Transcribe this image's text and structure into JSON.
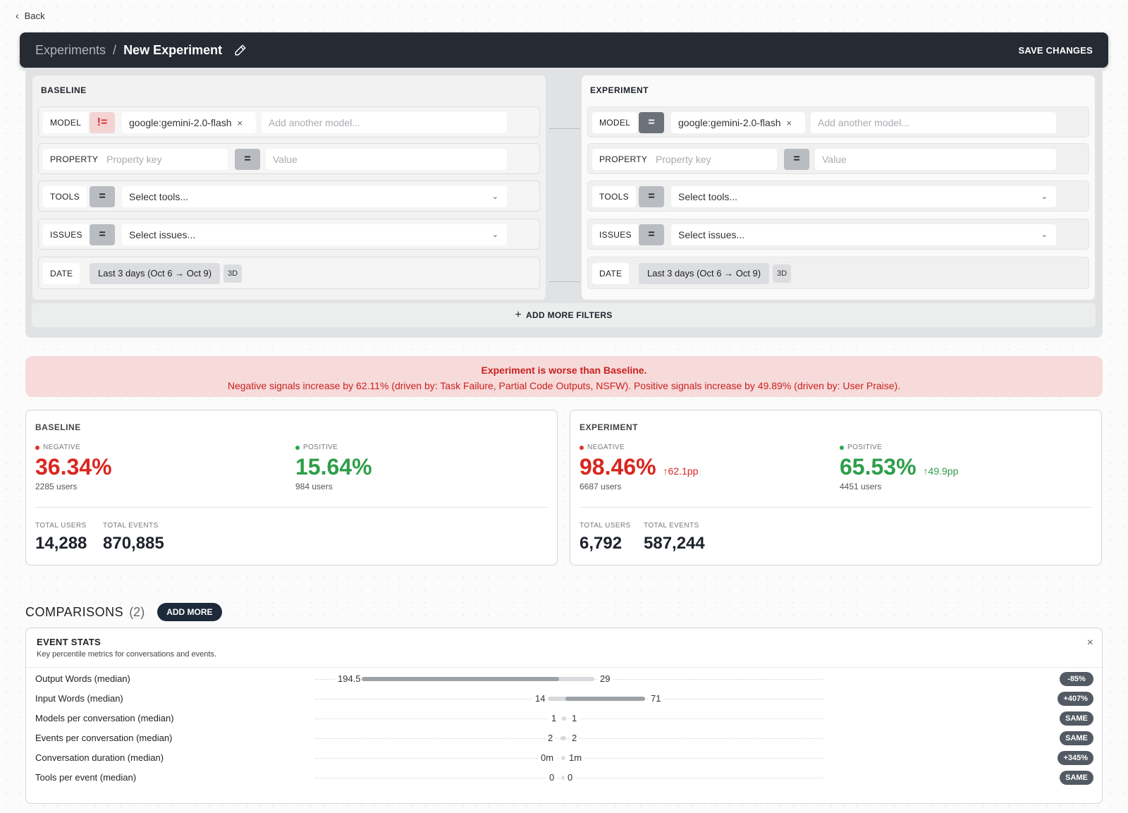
{
  "nav": {
    "back_label": "Back"
  },
  "header": {
    "breadcrumb_root": "Experiments",
    "breadcrumb_sep": "/",
    "title": "New Experiment",
    "save_label": "SAVE CHANGES"
  },
  "filters": {
    "baseline": {
      "title": "BASELINE",
      "model": {
        "tag": "MODEL",
        "op": "!=",
        "chip": "google:gemini-2.0-flash",
        "chip_remove": "×",
        "placeholder": "Add another model..."
      },
      "property": {
        "tag": "PROPERTY",
        "key_placeholder": "Property key",
        "op": "=",
        "value_placeholder": "Value"
      },
      "tools": {
        "tag": "TOOLS",
        "op": "=",
        "placeholder": "Select tools..."
      },
      "issues": {
        "tag": "ISSUES",
        "op": "=",
        "placeholder": "Select issues..."
      },
      "date": {
        "tag": "DATE",
        "range": "Last 3 days (Oct 6 → Oct 9)",
        "short": "3D"
      }
    },
    "experiment": {
      "title": "EXPERIMENT",
      "model": {
        "tag": "MODEL",
        "op": "=",
        "chip": "google:gemini-2.0-flash",
        "chip_remove": "×",
        "placeholder": "Add another model..."
      },
      "property": {
        "tag": "PROPERTY",
        "key_placeholder": "Property key",
        "op": "=",
        "value_placeholder": "Value"
      },
      "tools": {
        "tag": "TOOLS",
        "op": "=",
        "placeholder": "Select tools..."
      },
      "issues": {
        "tag": "ISSUES",
        "op": "=",
        "placeholder": "Select issues..."
      },
      "date": {
        "tag": "DATE",
        "range": "Last 3 days (Oct 6 → Oct 9)",
        "short": "3D"
      }
    },
    "add_more_label": "ADD MORE FILTERS"
  },
  "alert": {
    "headline": "Experiment is worse than Baseline.",
    "detail": "Negative signals increase by 62.11% (driven by: Task Failure, Partial Code Outputs, NSFW). Positive signals increase by 49.89% (driven by: User Praise).",
    "color": "#c8221f"
  },
  "stats": {
    "baseline": {
      "title": "BASELINE",
      "negative": {
        "label": "NEGATIVE",
        "value": "36.34%",
        "users": "2285 users"
      },
      "positive": {
        "label": "POSITIVE",
        "value": "15.64%",
        "users": "984 users"
      },
      "total_users": {
        "label": "TOTAL USERS",
        "value": "14,288"
      },
      "total_events": {
        "label": "TOTAL EVENTS",
        "value": "870,885"
      }
    },
    "experiment": {
      "title": "EXPERIMENT",
      "negative": {
        "label": "NEGATIVE",
        "value": "98.46%",
        "delta": "↑62.1pp",
        "users": "6687 users"
      },
      "positive": {
        "label": "POSITIVE",
        "value": "65.53%",
        "delta": "↑49.9pp",
        "users": "4451 users"
      },
      "total_users": {
        "label": "TOTAL USERS",
        "value": "6,792"
      },
      "total_events": {
        "label": "TOTAL EVENTS",
        "value": "587,244"
      }
    }
  },
  "comparisons": {
    "title": "COMPARISONS",
    "count": "(2)",
    "add_label": "ADD MORE",
    "event_stats": {
      "title": "EVENT STATS",
      "subtitle": "Key percentile metrics for conversations and events.",
      "close": "×",
      "rows": [
        {
          "name": "Output Words (median)",
          "baseline": "194.5",
          "experiment": "29",
          "change": "-85%"
        },
        {
          "name": "Input Words (median)",
          "baseline": "14",
          "experiment": "71",
          "change": "+407%"
        },
        {
          "name": "Models per conversation (median)",
          "baseline": "1",
          "experiment": "1",
          "change": "SAME"
        },
        {
          "name": "Events per conversation (median)",
          "baseline": "2",
          "experiment": "2",
          "change": "SAME"
        },
        {
          "name": "Conversation duration (median)",
          "baseline": "0m",
          "experiment": "1m",
          "change": "+345%"
        },
        {
          "name": "Tools per event (median)",
          "baseline": "0",
          "experiment": "0",
          "change": "SAME"
        }
      ]
    }
  },
  "colors": {
    "negative": "#d9261f",
    "positive": "#2f9e4a",
    "topbar": "#252a33",
    "badge": "#545a63"
  }
}
